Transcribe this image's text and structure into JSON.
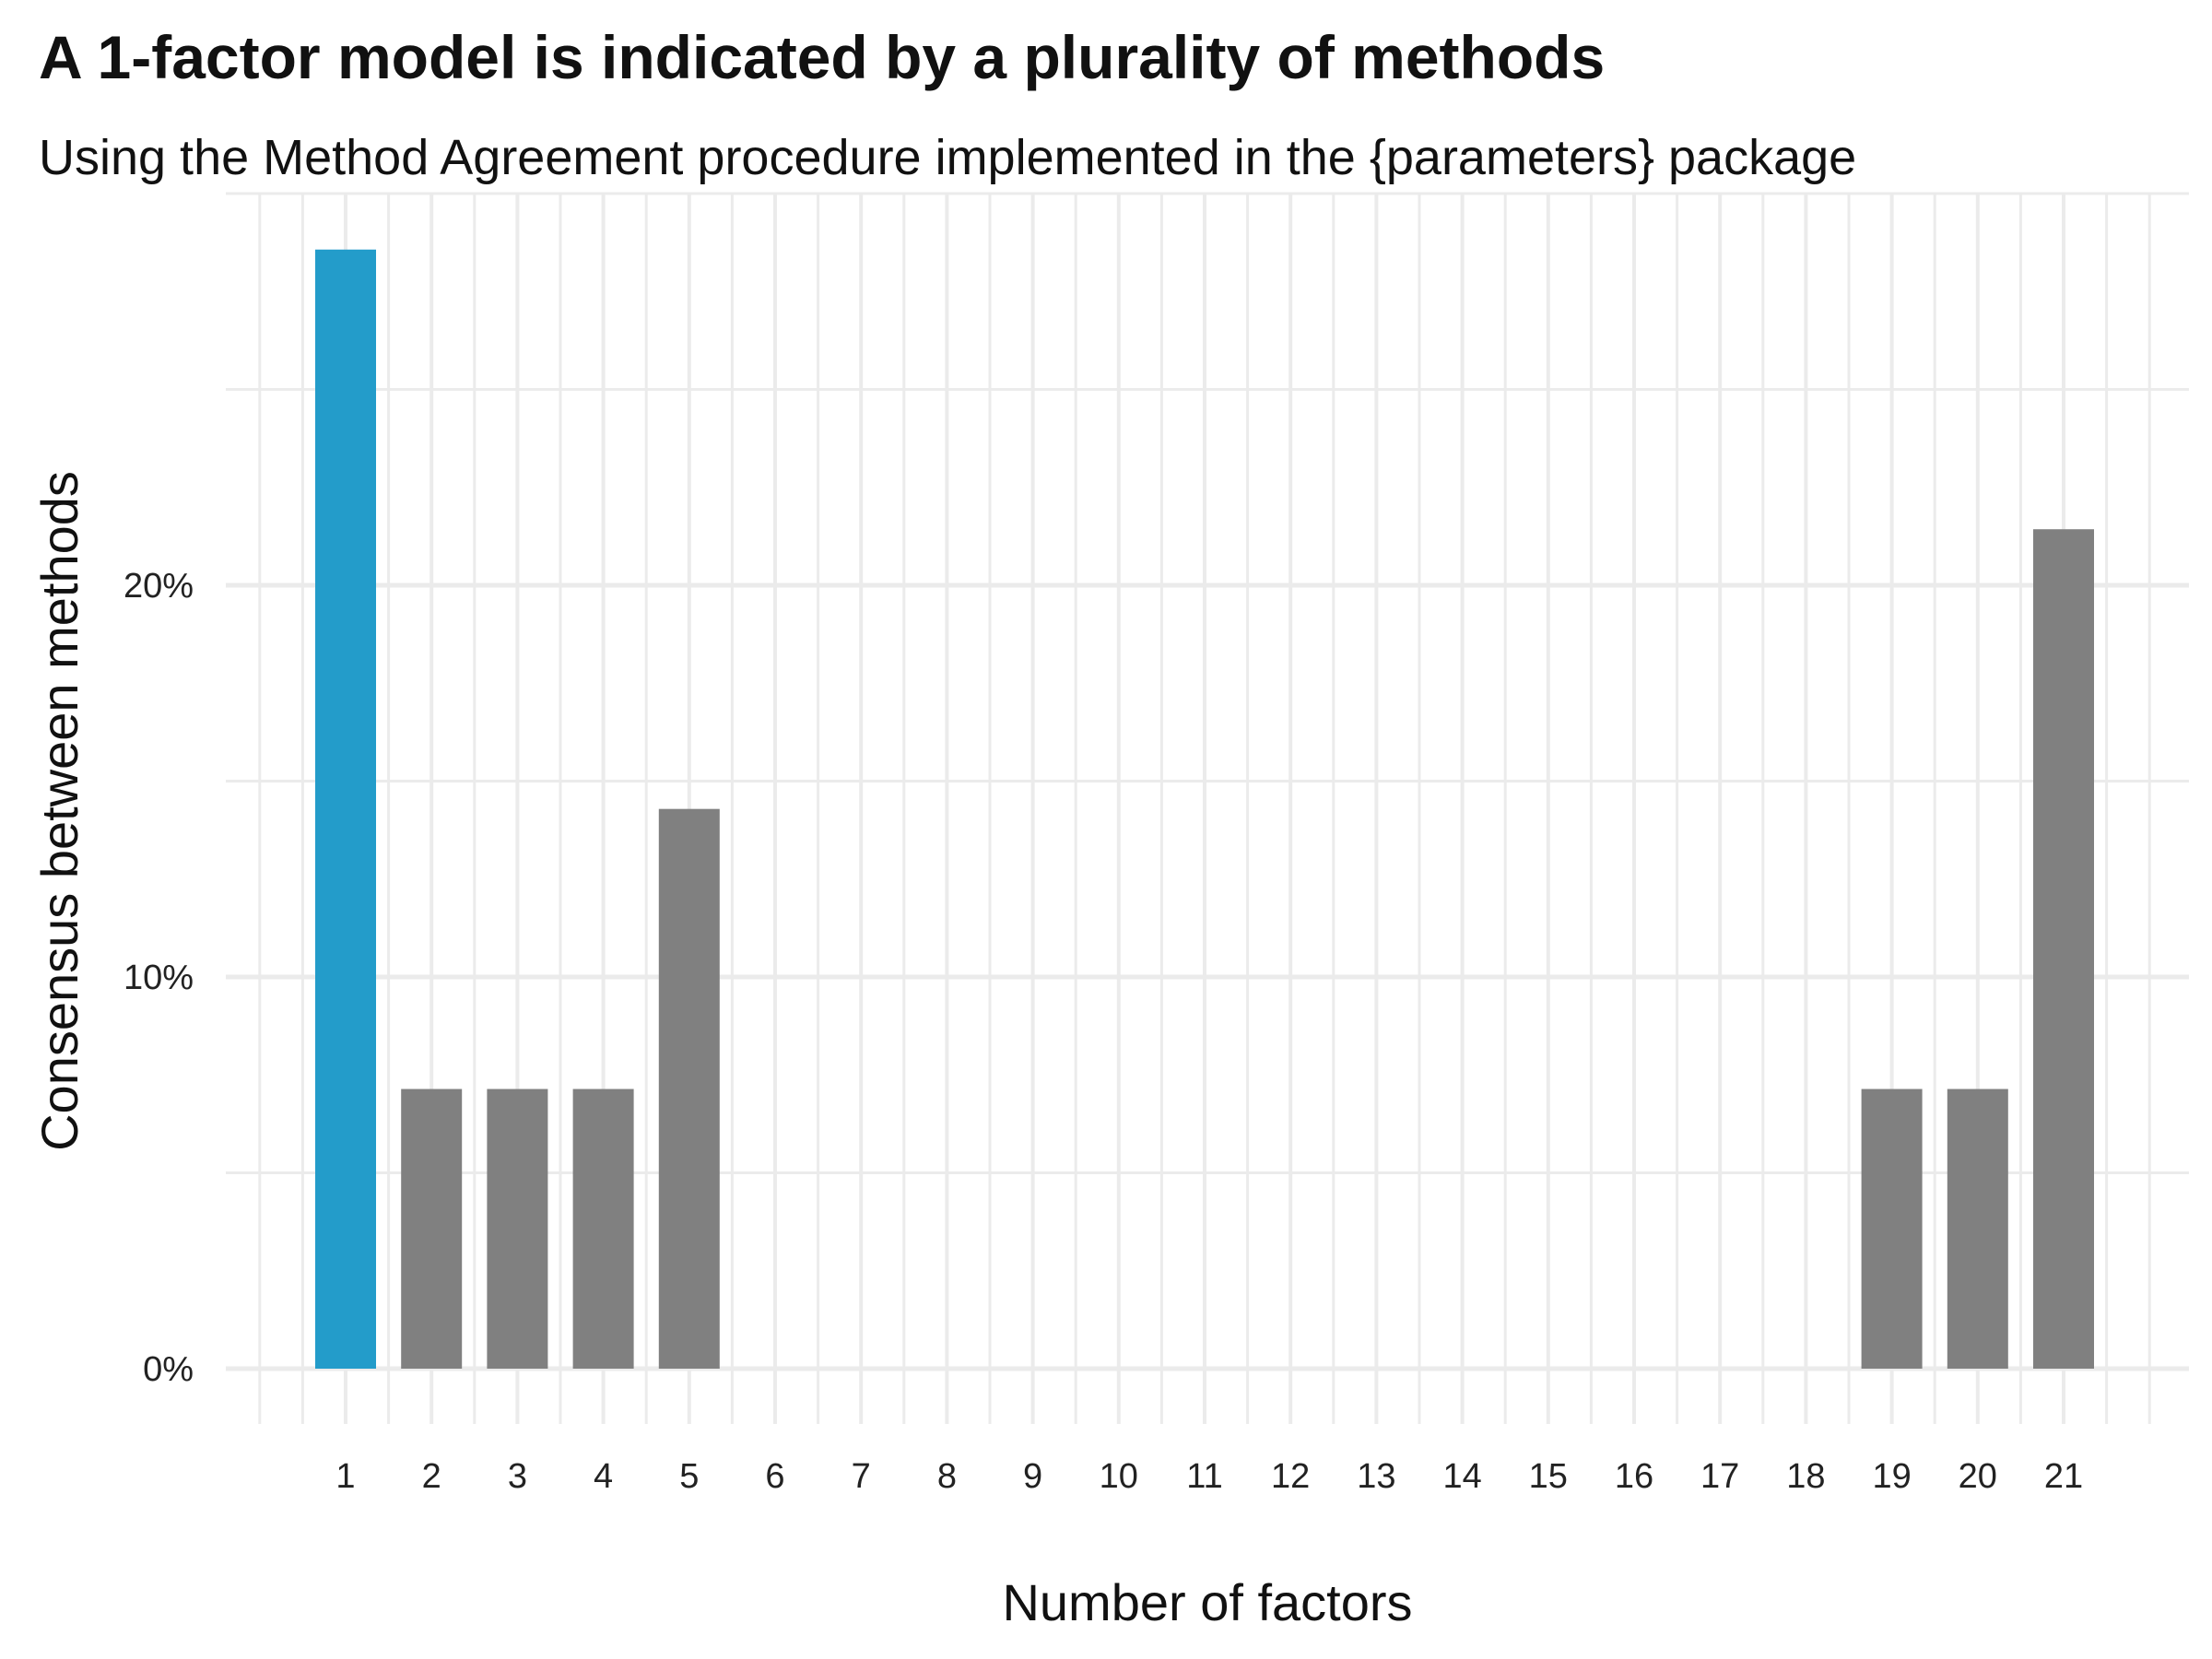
{
  "title": "A 1-factor model is indicated by a plurality of methods",
  "subtitle": "Using the Method Agreement procedure implemented in the {parameters} package",
  "chart_data": {
    "type": "bar",
    "title": "A 1-factor model is indicated by a plurality of methods",
    "subtitle": "Using the Method Agreement procedure implemented in the {parameters} package",
    "xlabel": "Number of factors",
    "ylabel": "Consensus between methods",
    "categories": [
      "1",
      "2",
      "3",
      "4",
      "5",
      "6",
      "7",
      "8",
      "9",
      "10",
      "11",
      "12",
      "13",
      "14",
      "15",
      "16",
      "17",
      "18",
      "19",
      "20",
      "21"
    ],
    "values": [
      28.57,
      7.14,
      7.14,
      7.14,
      14.29,
      0,
      0,
      0,
      0,
      0,
      0,
      0,
      0,
      0,
      0,
      0,
      0,
      0,
      7.14,
      7.14,
      21.43
    ],
    "highlight_index": 0,
    "highlight_color": "#239CCA",
    "bar_color": "#808080",
    "grid_color": "#EBEBEB",
    "ylim": [
      0,
      30
    ],
    "yticks": [
      0,
      10,
      20
    ],
    "ytick_labels": [
      "0%",
      "10%",
      "20%"
    ],
    "grid": true,
    "legend": "none"
  }
}
